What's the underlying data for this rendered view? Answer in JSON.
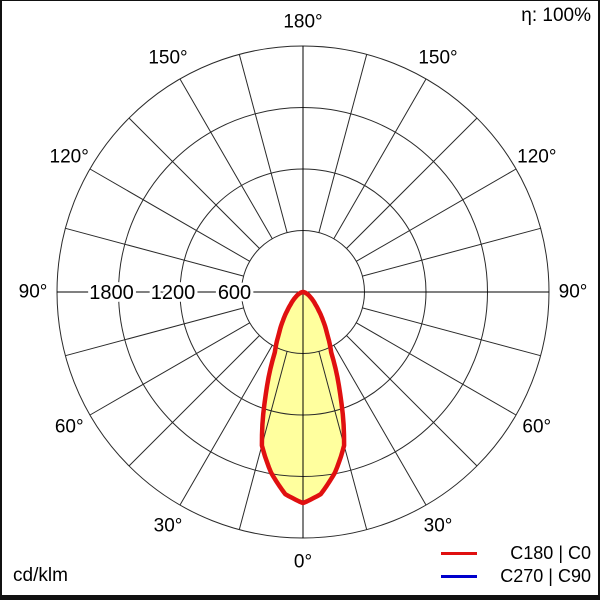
{
  "labels": {
    "efficiency": "η: 100%",
    "unit": "cd/klm"
  },
  "legend": {
    "entries": [
      {
        "label": "C180 | C0",
        "color": "#e01010"
      },
      {
        "label": "C270 | C90",
        "color": "#0000cc"
      }
    ]
  },
  "chart_data": {
    "type": "line",
    "subtype": "polar-photometric-intensity-distribution",
    "units": "cd/klm",
    "efficiency": "η: 100%",
    "radial_axis": {
      "tick_values": [
        600,
        1200,
        1800
      ],
      "tick_labels": [
        "600",
        "1200",
        "1800"
      ],
      "ring_values": [
        600,
        1200,
        1800,
        2400
      ],
      "max": 2400
    },
    "angular_axis": {
      "grid_step_deg": 15,
      "label_step_deg": 30,
      "labels": [
        {
          "text": "180°",
          "azimuth_deg": 0
        },
        {
          "text": "150°",
          "azimuth_deg": -30
        },
        {
          "text": "150°",
          "azimuth_deg": 30
        },
        {
          "text": "120°",
          "azimuth_deg": -60
        },
        {
          "text": "120°",
          "azimuth_deg": 60
        },
        {
          "text": "90°",
          "azimuth_deg": -90
        },
        {
          "text": "90°",
          "azimuth_deg": 90
        },
        {
          "text": "60°",
          "azimuth_deg": -120
        },
        {
          "text": "60°",
          "azimuth_deg": 120
        },
        {
          "text": "30°",
          "azimuth_deg": -150
        },
        {
          "text": "30°",
          "azimuth_deg": 150
        },
        {
          "text": "0°",
          "azimuth_deg": 180
        }
      ]
    },
    "series": [
      {
        "name": "C180 | C0",
        "color": "#e01010",
        "fill": "#ffff9e",
        "symmetric": true,
        "gamma_deg": [
          0,
          5,
          10,
          15,
          20,
          25,
          30,
          35,
          40,
          45,
          50,
          55,
          60,
          65,
          70,
          75,
          80,
          85,
          90
        ],
        "values_cd_per_klm": [
          2060,
          1980,
          1790,
          1550,
          1060,
          650,
          470,
          340,
          240,
          170,
          125,
          90,
          65,
          45,
          30,
          18,
          9,
          3,
          0
        ]
      },
      {
        "name": "C270 | C90",
        "color": "#0000cc",
        "visible": false
      }
    ],
    "colors": {
      "grid": "#2a2a2a",
      "background": "#ffffff",
      "text": "#000000"
    }
  }
}
